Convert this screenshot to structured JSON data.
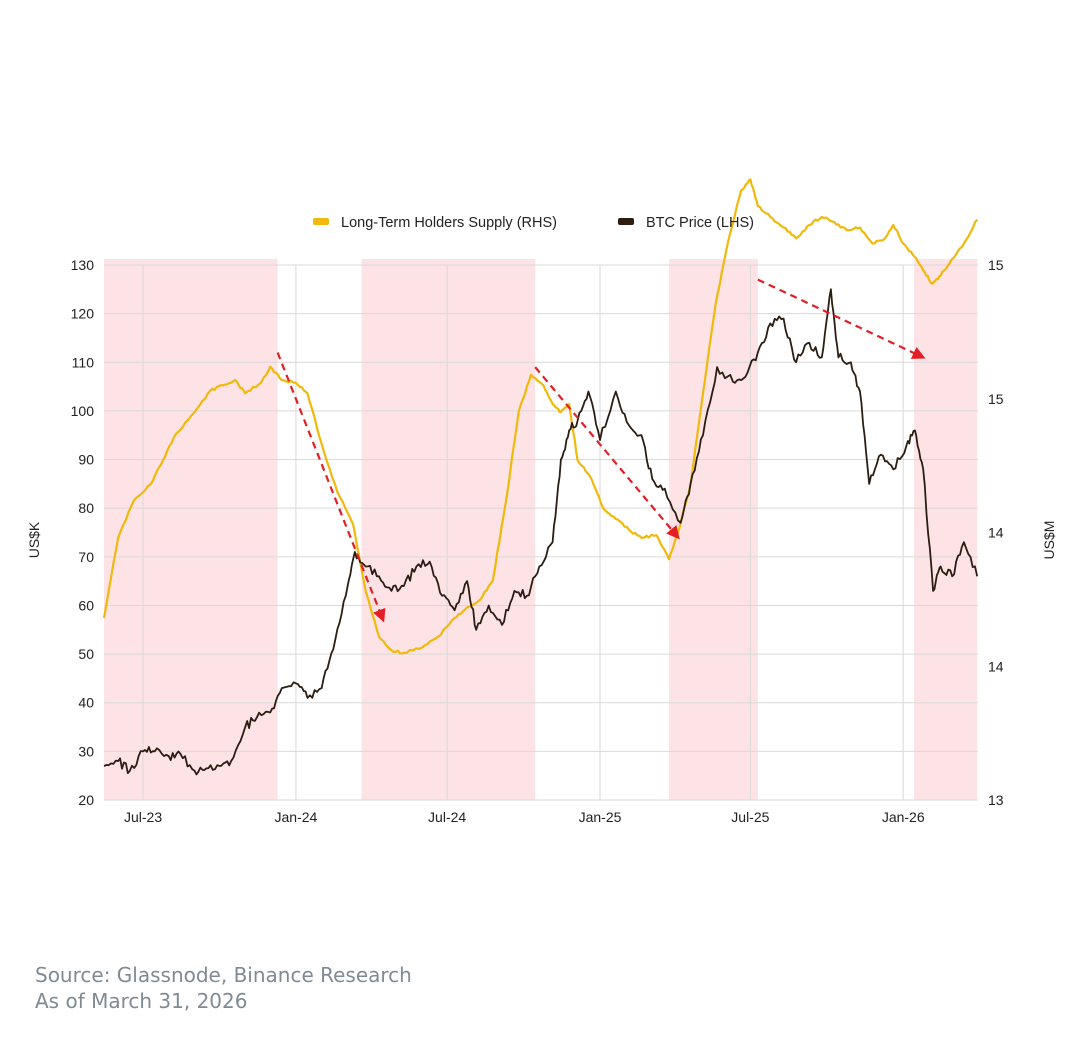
{
  "chart_data": {
    "type": "line",
    "title": "",
    "xlabel": "",
    "ylabel": "US$K",
    "y2label": "US$M",
    "x_range": [
      "2023-05-15",
      "2026-04-01"
    ],
    "xticks": [
      {
        "label": "Jul-23",
        "date": "2023-07-01"
      },
      {
        "label": "Jan-24",
        "date": "2024-01-01"
      },
      {
        "label": "Jul-24",
        "date": "2024-07-01"
      },
      {
        "label": "Jan-25",
        "date": "2025-01-01"
      },
      {
        "label": "Jul-25",
        "date": "2025-07-01"
      },
      {
        "label": "Jan-26",
        "date": "2026-01-01"
      }
    ],
    "ylim": [
      20,
      130
    ],
    "yticks": [
      20,
      30,
      40,
      50,
      60,
      70,
      80,
      90,
      100,
      110,
      120,
      130
    ],
    "y2lim": [
      13,
      15
    ],
    "y2ticks": [
      {
        "label": "13",
        "value": 13.0
      },
      {
        "label": "14",
        "value": 13.5
      },
      {
        "label": "14",
        "value": 14.0
      },
      {
        "label": "15",
        "value": 14.5
      },
      {
        "label": "15",
        "value": 15.0
      }
    ],
    "grid": true,
    "legend": "top-center",
    "series": [
      {
        "name": "Long-Term Holders Supply (RHS)",
        "axis": "right",
        "color": "#f0b90b",
        "points": [
          [
            "2023-05-15",
            13.68
          ],
          [
            "2023-06-01",
            13.98
          ],
          [
            "2023-06-20",
            14.12
          ],
          [
            "2023-07-10",
            14.18
          ],
          [
            "2023-07-25",
            14.27
          ],
          [
            "2023-08-10",
            14.37
          ],
          [
            "2023-09-01",
            14.45
          ],
          [
            "2023-09-20",
            14.53
          ],
          [
            "2023-10-05",
            14.55
          ],
          [
            "2023-10-20",
            14.57
          ],
          [
            "2023-11-01",
            14.52
          ],
          [
            "2023-11-20",
            14.56
          ],
          [
            "2023-12-01",
            14.62
          ],
          [
            "2023-12-15",
            14.57
          ],
          [
            "2024-01-01",
            14.56
          ],
          [
            "2024-01-15",
            14.52
          ],
          [
            "2024-02-01",
            14.33
          ],
          [
            "2024-02-20",
            14.15
          ],
          [
            "2024-03-10",
            14.03
          ],
          [
            "2024-03-25",
            13.78
          ],
          [
            "2024-04-10",
            13.61
          ],
          [
            "2024-04-25",
            13.56
          ],
          [
            "2024-05-10",
            13.55
          ],
          [
            "2024-06-01",
            13.57
          ],
          [
            "2024-06-20",
            13.61
          ],
          [
            "2024-07-10",
            13.68
          ],
          [
            "2024-07-25",
            13.72
          ],
          [
            "2024-08-10",
            13.75
          ],
          [
            "2024-08-25",
            13.82
          ],
          [
            "2024-09-10",
            14.12
          ],
          [
            "2024-09-25",
            14.45
          ],
          [
            "2024-10-10",
            14.59
          ],
          [
            "2024-10-25",
            14.55
          ],
          [
            "2024-11-05",
            14.48
          ],
          [
            "2024-11-15",
            14.45
          ],
          [
            "2024-11-25",
            14.48
          ],
          [
            "2024-12-05",
            14.27
          ],
          [
            "2024-12-20",
            14.21
          ],
          [
            "2025-01-05",
            14.09
          ],
          [
            "2025-01-20",
            14.05
          ],
          [
            "2025-02-05",
            14.01
          ],
          [
            "2025-02-20",
            13.98
          ],
          [
            "2025-03-10",
            13.99
          ],
          [
            "2025-03-25",
            13.9
          ],
          [
            "2025-04-05",
            14.0
          ],
          [
            "2025-04-20",
            14.18
          ],
          [
            "2025-05-05",
            14.52
          ],
          [
            "2025-05-20",
            14.85
          ],
          [
            "2025-06-05",
            15.1
          ],
          [
            "2025-06-20",
            15.28
          ],
          [
            "2025-07-01",
            15.32
          ],
          [
            "2025-07-10",
            15.22
          ],
          [
            "2025-07-25",
            15.18
          ],
          [
            "2025-08-10",
            15.14
          ],
          [
            "2025-08-25",
            15.1
          ],
          [
            "2025-09-10",
            15.15
          ],
          [
            "2025-09-25",
            15.18
          ],
          [
            "2025-10-10",
            15.16
          ],
          [
            "2025-10-25",
            15.13
          ],
          [
            "2025-11-10",
            15.14
          ],
          [
            "2025-11-25",
            15.08
          ],
          [
            "2025-12-10",
            15.1
          ],
          [
            "2025-12-20",
            15.15
          ],
          [
            "2026-01-01",
            15.08
          ],
          [
            "2026-01-15",
            15.03
          ],
          [
            "2026-01-25",
            14.98
          ],
          [
            "2026-02-05",
            14.93
          ],
          [
            "2026-02-15",
            14.96
          ],
          [
            "2026-02-28",
            15.02
          ],
          [
            "2026-03-15",
            15.08
          ],
          [
            "2026-03-31",
            15.17
          ]
        ]
      },
      {
        "name": "BTC Price (LHS)",
        "axis": "left",
        "color": "#2b1d12",
        "points": [
          [
            "2023-05-15",
            27
          ],
          [
            "2023-06-01",
            28
          ],
          [
            "2023-06-15",
            26
          ],
          [
            "2023-07-01",
            30
          ],
          [
            "2023-07-15",
            30
          ],
          [
            "2023-08-01",
            29
          ],
          [
            "2023-08-15",
            29.5
          ],
          [
            "2023-09-01",
            26
          ],
          [
            "2023-09-15",
            26.5
          ],
          [
            "2023-10-01",
            27
          ],
          [
            "2023-10-15",
            28
          ],
          [
            "2023-11-01",
            35
          ],
          [
            "2023-11-15",
            37
          ],
          [
            "2023-12-01",
            38
          ],
          [
            "2023-12-15",
            43
          ],
          [
            "2024-01-01",
            44
          ],
          [
            "2024-01-15",
            41
          ],
          [
            "2024-02-01",
            43
          ],
          [
            "2024-02-15",
            51
          ],
          [
            "2024-03-01",
            62
          ],
          [
            "2024-03-12",
            71
          ],
          [
            "2024-03-25",
            68
          ],
          [
            "2024-04-10",
            66
          ],
          [
            "2024-04-25",
            63
          ],
          [
            "2024-05-10",
            64
          ],
          [
            "2024-05-25",
            68
          ],
          [
            "2024-06-10",
            69
          ],
          [
            "2024-06-25",
            62
          ],
          [
            "2024-07-10",
            59
          ],
          [
            "2024-07-25",
            65
          ],
          [
            "2024-08-05",
            55
          ],
          [
            "2024-08-20",
            60
          ],
          [
            "2024-09-05",
            56
          ],
          [
            "2024-09-20",
            63
          ],
          [
            "2024-10-05",
            62
          ],
          [
            "2024-10-20",
            68
          ],
          [
            "2024-11-05",
            73
          ],
          [
            "2024-11-15",
            90
          ],
          [
            "2024-11-25",
            96
          ],
          [
            "2024-12-05",
            98
          ],
          [
            "2024-12-18",
            104
          ],
          [
            "2025-01-01",
            94
          ],
          [
            "2025-01-20",
            104
          ],
          [
            "2025-02-05",
            97
          ],
          [
            "2025-02-20",
            95
          ],
          [
            "2025-03-05",
            86
          ],
          [
            "2025-03-20",
            84
          ],
          [
            "2025-04-08",
            77
          ],
          [
            "2025-04-20",
            85
          ],
          [
            "2025-05-05",
            95
          ],
          [
            "2025-05-22",
            109
          ],
          [
            "2025-06-10",
            106
          ],
          [
            "2025-06-25",
            107
          ],
          [
            "2025-07-10",
            112
          ],
          [
            "2025-07-25",
            118
          ],
          [
            "2025-08-10",
            119
          ],
          [
            "2025-08-25",
            110
          ],
          [
            "2025-09-10",
            114
          ],
          [
            "2025-09-25",
            111
          ],
          [
            "2025-10-06",
            125
          ],
          [
            "2025-10-15",
            111
          ],
          [
            "2025-10-30",
            110
          ],
          [
            "2025-11-10",
            104
          ],
          [
            "2025-11-21",
            85
          ],
          [
            "2025-12-05",
            91
          ],
          [
            "2025-12-20",
            88
          ],
          [
            "2026-01-05",
            93
          ],
          [
            "2026-01-15",
            96
          ],
          [
            "2026-01-25",
            88
          ],
          [
            "2026-02-06",
            63
          ],
          [
            "2026-02-15",
            68
          ],
          [
            "2026-03-01",
            66
          ],
          [
            "2026-03-15",
            73
          ],
          [
            "2026-03-31",
            66
          ]
        ]
      }
    ],
    "shaded_periods": [
      {
        "start": "2023-05-15",
        "end": "2023-12-10"
      },
      {
        "start": "2024-03-20",
        "end": "2024-10-15"
      },
      {
        "start": "2025-03-25",
        "end": "2025-07-10"
      },
      {
        "start": "2026-01-14",
        "end": "2026-03-31"
      }
    ],
    "trend_arrows": [
      {
        "axis": "left",
        "from": [
          "2023-12-10",
          112
        ],
        "to": [
          "2024-04-15",
          57
        ]
      },
      {
        "axis": "left",
        "from": [
          "2024-10-15",
          109
        ],
        "to": [
          "2025-04-05",
          74
        ]
      },
      {
        "axis": "left",
        "from": [
          "2025-07-10",
          127
        ],
        "to": [
          "2026-01-25",
          111
        ]
      }
    ]
  },
  "source_line": "Source: Glassnode, Binance Research",
  "date_line": "As of March 31, 2026"
}
